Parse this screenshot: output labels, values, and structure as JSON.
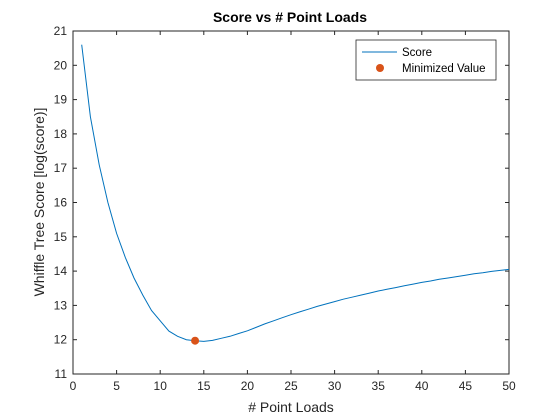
{
  "chart_data": {
    "type": "line",
    "title": "Score vs # Point Loads",
    "xlabel": "# Point Loads",
    "ylabel": "Whiffle Tree Score [log(score)]",
    "xlim": [
      0,
      50
    ],
    "ylim": [
      11,
      21
    ],
    "xticks": [
      "0",
      "5",
      "10",
      "15",
      "20",
      "25",
      "30",
      "35",
      "40",
      "45",
      "50"
    ],
    "yticks": [
      "11",
      "12",
      "13",
      "14",
      "15",
      "16",
      "17",
      "18",
      "19",
      "20",
      "21"
    ],
    "grid": false,
    "legend_position": "top-right",
    "legend": [
      "Score",
      "Minimized Value"
    ],
    "series": [
      {
        "name": "Score",
        "style": "line",
        "color": "#0072BD",
        "x": [
          1,
          2,
          3,
          4,
          5,
          6,
          7,
          8,
          9,
          10,
          11,
          12,
          13,
          14,
          15,
          16,
          17,
          18,
          19,
          20,
          21,
          22,
          23,
          24,
          25,
          26,
          27,
          28,
          29,
          30,
          31,
          32,
          33,
          34,
          35,
          36,
          37,
          38,
          39,
          40,
          41,
          42,
          43,
          44,
          45,
          46,
          47,
          48,
          49,
          50
        ],
        "y": [
          20.6,
          18.5,
          17.1,
          16.0,
          15.1,
          14.4,
          13.8,
          13.3,
          12.85,
          12.55,
          12.25,
          12.1,
          12.0,
          11.97,
          11.95,
          11.98,
          12.04,
          12.1,
          12.18,
          12.26,
          12.36,
          12.46,
          12.55,
          12.64,
          12.73,
          12.81,
          12.89,
          12.97,
          13.04,
          13.11,
          13.18,
          13.24,
          13.3,
          13.36,
          13.42,
          13.47,
          13.52,
          13.57,
          13.62,
          13.67,
          13.71,
          13.76,
          13.8,
          13.84,
          13.88,
          13.92,
          13.95,
          13.99,
          14.02,
          14.05
        ]
      },
      {
        "name": "Minimized Value",
        "style": "marker",
        "color": "#D95319",
        "x": [
          14
        ],
        "y": [
          11.97
        ]
      }
    ]
  }
}
